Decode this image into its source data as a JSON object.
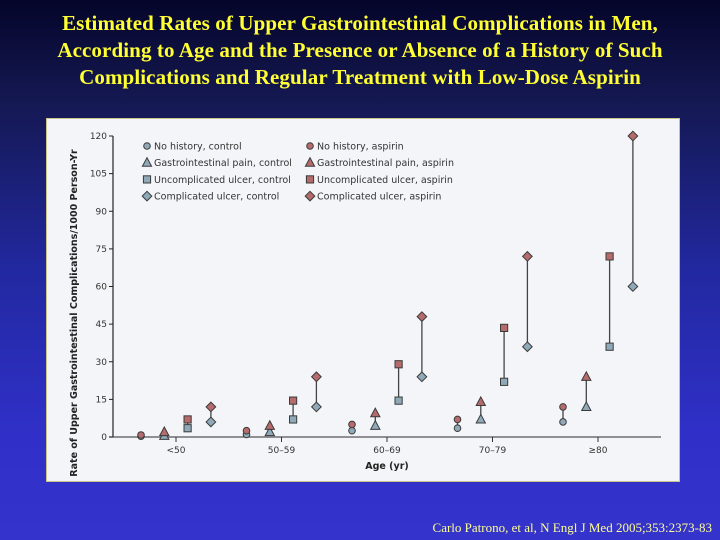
{
  "slide": {
    "title_lines": [
      "Estimated Rates of Upper Gastrointestinal Complications in Men,",
      "According to Age and the Presence or Absence of a History of Such",
      "Complications and Regular Treatment with Low-Dose Aspirin"
    ],
    "citation": "Carlo Patrono, et al, N Engl J Med 2005;353:2373-83"
  },
  "colors": {
    "control": "#8fa9b8",
    "aspirin": "#b56b6b",
    "title": "#ffff33",
    "citation": "#ffff99"
  },
  "chart_data": {
    "type": "scatter",
    "title": "",
    "xlabel": "Age (yr)",
    "ylabel": "Rate of Upper Gastrointestinal Complications/1000 Person-Yr",
    "ylim": [
      0,
      120
    ],
    "yticks": [
      0,
      15,
      30,
      45,
      60,
      75,
      90,
      105,
      120
    ],
    "categories": [
      "<50",
      "50–59",
      "60–69",
      "70–79",
      "≥80"
    ],
    "legend_position": "top-left",
    "history_groups": [
      {
        "key": "no_history",
        "marker": "circle",
        "control_label": "No history, control",
        "aspirin_label": "No history, aspirin"
      },
      {
        "key": "gi_pain",
        "marker": "triangle",
        "control_label": "Gastrointestinal pain, control",
        "aspirin_label": "Gastrointestinal pain, aspirin"
      },
      {
        "key": "uncomplicated_ulcer",
        "marker": "square",
        "control_label": "Uncomplicated ulcer, control",
        "aspirin_label": "Uncomplicated ulcer, aspirin"
      },
      {
        "key": "complicated_ulcer",
        "marker": "diamond",
        "control_label": "Complicated ulcer, control",
        "aspirin_label": "Complicated ulcer, aspirin"
      }
    ],
    "series": [
      {
        "name": "No history, control",
        "group": "no_history",
        "arm": "control",
        "values": [
          0.3,
          1,
          2.5,
          3.5,
          6
        ]
      },
      {
        "name": "No history, aspirin",
        "group": "no_history",
        "arm": "aspirin",
        "values": [
          0.8,
          2.5,
          5,
          7,
          12
        ]
      },
      {
        "name": "Gastrointestinal pain, control",
        "group": "gi_pain",
        "arm": "control",
        "values": [
          0.5,
          2,
          4.5,
          7,
          12
        ]
      },
      {
        "name": "Gastrointestinal pain, aspirin",
        "group": "gi_pain",
        "arm": "aspirin",
        "values": [
          2,
          4.5,
          9.5,
          14,
          24
        ]
      },
      {
        "name": "Uncomplicated ulcer, control",
        "group": "uncomplicated_ulcer",
        "arm": "control",
        "values": [
          3.5,
          7,
          14.5,
          22,
          36
        ]
      },
      {
        "name": "Uncomplicated ulcer, aspirin",
        "group": "uncomplicated_ulcer",
        "arm": "aspirin",
        "values": [
          7,
          14.5,
          29,
          43.5,
          72
        ]
      },
      {
        "name": "Complicated ulcer, control",
        "group": "complicated_ulcer",
        "arm": "control",
        "values": [
          6,
          12,
          24,
          36,
          60
        ]
      },
      {
        "name": "Complicated ulcer, aspirin",
        "group": "complicated_ulcer",
        "arm": "aspirin",
        "values": [
          12,
          24,
          48,
          72,
          120
        ]
      }
    ]
  }
}
